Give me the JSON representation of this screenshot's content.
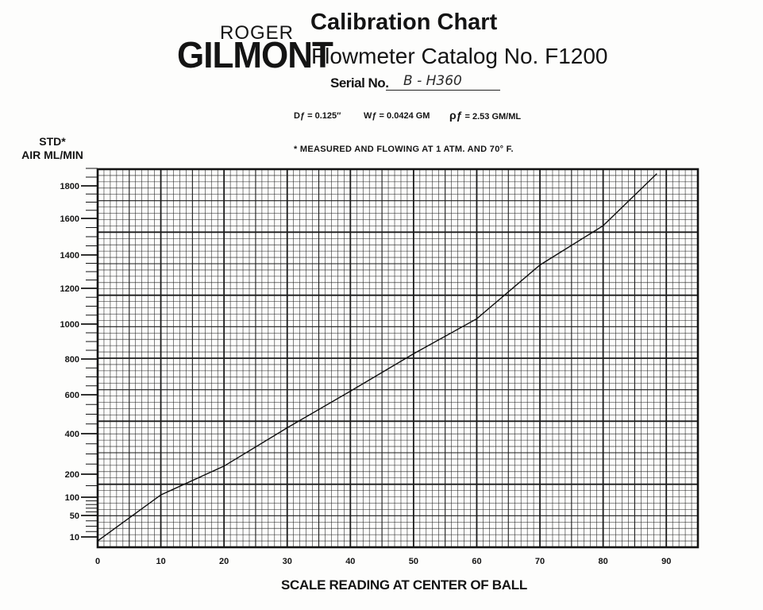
{
  "header": {
    "brand_top": "ROGER",
    "brand_main": "GILMONT",
    "title": "Calibration Chart",
    "subtitle": "Flowmeter Catalog No. F1200",
    "serial_label": "Serial No.",
    "serial_value": "B - H360"
  },
  "params": {
    "df": "Dƒ = 0.125″",
    "wf": "Wƒ = 0.0424 GM",
    "rho_symbol": "ρƒ",
    "rho_value": "= 2.53 GM/ML",
    "note": "* MEASURED AND FLOWING AT 1 ATM. AND 70° F."
  },
  "chart_data": {
    "type": "line",
    "title": "Calibration Chart",
    "xlabel": "SCALE READING AT CENTER OF BALL",
    "ylabel_line1": "STD*",
    "ylabel_line2": "AIR ML/MIN",
    "xlim": [
      0,
      95
    ],
    "x_ticks": [
      0,
      10,
      20,
      30,
      40,
      50,
      60,
      70,
      80,
      90
    ],
    "y_ticks": [
      10,
      50,
      100,
      200,
      400,
      600,
      800,
      1000,
      1200,
      1400,
      1600,
      1800
    ],
    "grid": true,
    "series": [
      {
        "x": [
          0,
          10,
          20,
          30,
          40,
          50,
          60,
          70,
          80,
          88.5
        ],
        "y": [
          5,
          110,
          240,
          430,
          620,
          830,
          1030,
          1340,
          1560,
          1870
        ]
      }
    ]
  }
}
